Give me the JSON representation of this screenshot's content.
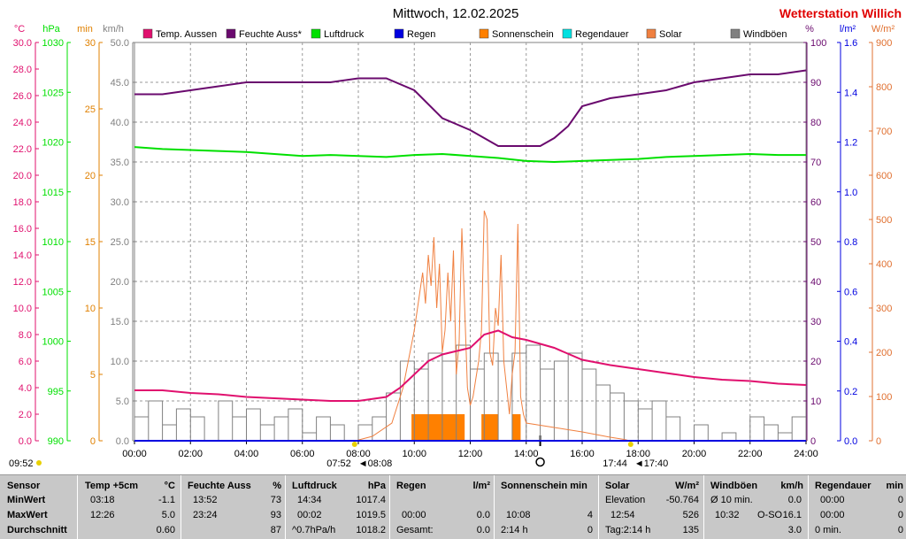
{
  "title": "Mittwoch, 12.02.2025",
  "station": "Wetterstation Willich",
  "colors": {
    "temp": "#e0106e",
    "humidity": "#6a0a6e",
    "pressure": "#00e000",
    "rain": "#0000e0",
    "sunshine": "#ff8000",
    "rainduration": "#00e0e0",
    "solar": "#f08040",
    "wind": "#808080",
    "grid": "#9a9a9a",
    "station": "#e00000"
  },
  "axes": {
    "temp": {
      "unit": "°C",
      "ticks": [
        "0.0",
        "2.0",
        "4.0",
        "6.0",
        "8.0",
        "10.0",
        "12.0",
        "14.0",
        "16.0",
        "18.0",
        "20.0",
        "22.0",
        "24.0",
        "26.0",
        "28.0",
        "30.0"
      ]
    },
    "pressure": {
      "unit": "hPa",
      "ticks": [
        "990",
        "995",
        "1000",
        "1005",
        "1010",
        "1015",
        "1020",
        "1025",
        "1030"
      ]
    },
    "sun_min": {
      "unit": "min",
      "ticks": [
        "0",
        "5",
        "10",
        "15",
        "20",
        "25",
        "30"
      ]
    },
    "wind": {
      "unit": "km/h",
      "ticks": [
        "0.0",
        "5.0",
        "10.0",
        "15.0",
        "20.0",
        "25.0",
        "30.0",
        "35.0",
        "40.0",
        "45.0",
        "50.0"
      ]
    },
    "humidity": {
      "unit": "%",
      "ticks": [
        "0",
        "10",
        "20",
        "30",
        "40",
        "50",
        "60",
        "70",
        "80",
        "90",
        "100"
      ]
    },
    "rain": {
      "unit": "l/m²",
      "ticks": [
        "0.0",
        "0.2",
        "0.4",
        "0.6",
        "0.8",
        "1.0",
        "1.2",
        "1.4",
        "1.6"
      ]
    },
    "solar": {
      "unit": "W/m²",
      "ticks": [
        "0",
        "100",
        "200",
        "300",
        "400",
        "500",
        "600",
        "700",
        "800",
        "900"
      ]
    }
  },
  "chart_data": {
    "type": "line",
    "title": "Mittwoch, 12.02.2025",
    "x_ticks": [
      "00:00",
      "02:00",
      "04:00",
      "06:00",
      "08:00",
      "10:00",
      "12:00",
      "14:00",
      "16:00",
      "18:00",
      "20:00",
      "22:00",
      "24:00"
    ],
    "legend": [
      "Temp. Aussen",
      "Feuchte Auss*",
      "Luftdruck",
      "Regen",
      "Sonnenschein",
      "Regendauer",
      "Solar",
      "Windböen"
    ],
    "series": [
      {
        "name": "Temp. Aussen",
        "unit": "°C",
        "x": [
          0,
          1,
          2,
          3,
          4,
          5,
          6,
          7,
          8,
          9,
          9.5,
          10,
          10.5,
          11,
          12,
          12.5,
          13,
          13.5,
          14,
          15,
          16,
          17,
          18,
          19,
          20,
          21,
          22,
          23,
          24
        ],
        "values": [
          3.8,
          3.8,
          3.6,
          3.5,
          3.3,
          3.2,
          3.1,
          3.0,
          3.0,
          3.3,
          4.0,
          5.0,
          6.0,
          6.5,
          7.0,
          8.0,
          8.3,
          7.8,
          7.6,
          7.0,
          6.1,
          5.7,
          5.4,
          5.1,
          4.8,
          4.6,
          4.5,
          4.3,
          4.2
        ]
      },
      {
        "name": "Feuchte Auss*",
        "unit": "%",
        "x": [
          0,
          1,
          2,
          3,
          4,
          5,
          6,
          7,
          8,
          9,
          10,
          11,
          12,
          12.5,
          13,
          13.5,
          14,
          14.5,
          15,
          15.5,
          16,
          17,
          18,
          19,
          20,
          21,
          22,
          23,
          24
        ],
        "values": [
          87,
          87,
          88,
          89,
          90,
          90,
          90,
          90,
          91,
          91,
          88,
          81,
          78,
          76,
          74,
          74,
          74,
          74,
          76,
          79,
          84,
          86,
          87,
          88,
          90,
          91,
          92,
          92,
          93
        ]
      },
      {
        "name": "Luftdruck",
        "unit": "hPa",
        "x": [
          0,
          1,
          2,
          3,
          4,
          5,
          6,
          7,
          8,
          9,
          10,
          11,
          12,
          13,
          14,
          15,
          16,
          17,
          18,
          19,
          20,
          21,
          22,
          23,
          24
        ],
        "values": [
          1019.5,
          1019.3,
          1019.2,
          1019.1,
          1019.0,
          1018.8,
          1018.6,
          1018.7,
          1018.6,
          1018.5,
          1018.7,
          1018.8,
          1018.6,
          1018.4,
          1018.1,
          1018.0,
          1018.1,
          1018.2,
          1018.3,
          1018.5,
          1018.6,
          1018.7,
          1018.8,
          1018.7,
          1018.7
        ]
      },
      {
        "name": "Regen",
        "unit": "l/m²",
        "x": [
          0,
          24
        ],
        "values": [
          0.0,
          0.0
        ]
      },
      {
        "name": "Sonnenschein",
        "unit": "min",
        "segments": [
          [
            9.9,
            11.8
          ],
          [
            12.4,
            13.0
          ],
          [
            13.5,
            13.8
          ]
        ]
      },
      {
        "name": "Regendauer",
        "unit": "min",
        "x": [
          0,
          24
        ],
        "values": [
          0,
          0
        ]
      },
      {
        "name": "Solar",
        "unit": "W/m²",
        "x": [
          7.9,
          8.5,
          9.2,
          9.6,
          10.0,
          10.3,
          10.4,
          10.5,
          10.6,
          10.7,
          10.8,
          10.9,
          11.0,
          11.1,
          11.2,
          11.3,
          11.4,
          11.5,
          11.6,
          11.7,
          11.8,
          11.9,
          12.0,
          12.1,
          12.2,
          12.3,
          12.4,
          12.5,
          12.6,
          12.7,
          12.8,
          12.9,
          13.0,
          13.1,
          13.2,
          13.3,
          13.4,
          13.5,
          13.6,
          13.7,
          13.8,
          13.9,
          14.0,
          14.5,
          15.0,
          15.5,
          16.0,
          16.5,
          17.0,
          17.5,
          17.7
        ],
        "values": [
          0,
          10,
          40,
          120,
          250,
          380,
          310,
          420,
          350,
          460,
          300,
          400,
          200,
          250,
          380,
          270,
          430,
          150,
          220,
          480,
          300,
          120,
          80,
          100,
          140,
          180,
          250,
          520,
          500,
          200,
          170,
          300,
          260,
          420,
          180,
          120,
          60,
          150,
          200,
          490,
          100,
          60,
          40,
          35,
          30,
          25,
          20,
          14,
          8,
          3,
          0
        ]
      },
      {
        "name": "Windböen",
        "unit": "km/h",
        "x": [
          0,
          0.5,
          1,
          1.5,
          2,
          2.5,
          3,
          3.5,
          4,
          4.5,
          5,
          5.5,
          6,
          6.5,
          7,
          7.5,
          8,
          8.5,
          9,
          9.5,
          10,
          10.5,
          11,
          11.5,
          12,
          12.5,
          13,
          13.5,
          14,
          14.5,
          15,
          15.5,
          16,
          16.5,
          17,
          17.5,
          18,
          18.5,
          19,
          19.5,
          20,
          20.5,
          21,
          21.5,
          22,
          22.5,
          23,
          23.5,
          24
        ],
        "values": [
          3,
          5,
          2,
          4,
          3,
          0,
          5,
          3,
          4,
          2,
          3,
          4,
          1,
          3,
          2,
          0,
          2,
          3,
          6,
          10,
          9,
          11,
          10,
          12,
          9,
          11,
          10,
          11,
          12,
          9,
          10,
          11,
          9,
          7,
          6,
          5,
          4,
          5,
          3,
          0,
          2,
          0,
          1,
          0,
          3,
          2,
          1,
          3,
          0
        ]
      }
    ],
    "markers": {
      "sunrise": "07:52",
      "civil_dawn": "08:08",
      "sunset": "17:44",
      "civil_dusk": "17:40",
      "start": "09:52"
    }
  },
  "stats": {
    "headers": {
      "sensor": "Sensor",
      "temp": "Temp +5cm",
      "temp_unit": "°C",
      "hum": "Feuchte Auss",
      "hum_unit": "%",
      "press": "Luftdruck",
      "press_unit": "hPa",
      "rain": "Regen",
      "rain_unit": "l/m²",
      "sun": "Sonnenschein min",
      "solar": "Solar",
      "solar_unit": "W/m²",
      "wind": "Windböen",
      "wind_unit": "km/h",
      "rdur": "Regendauer",
      "rdur_unit": "min"
    },
    "rows": [
      {
        "label": "MinWert",
        "temp_t": "03:18",
        "temp_v": "-1.1",
        "hum_t": "13:52",
        "hum_v": "73",
        "press_t": "14:34",
        "press_v": "1017.4",
        "rain_t": "",
        "rain_v": "",
        "sun_t": "",
        "sun_v": "",
        "solar_t": "Elevation",
        "solar_v": "-50.764",
        "wind_t": "Ø 10 min.",
        "wind_v": "0.0",
        "rdur_t": "00:00",
        "rdur_v": "0"
      },
      {
        "label": "MaxWert",
        "temp_t": "12:26",
        "temp_v": "5.0",
        "hum_t": "23:24",
        "hum_v": "93",
        "press_t": "00:02",
        "press_v": "1019.5",
        "rain_t": "00:00",
        "rain_v": "0.0",
        "sun_t": "10:08",
        "sun_v": "4",
        "solar_t": "12:54",
        "solar_v": "526",
        "wind_t": "10:32",
        "wind_d": "O-SO",
        "wind_v": "16.1",
        "rdur_t": "00:00",
        "rdur_v": "0"
      },
      {
        "label": "Durchschnitt",
        "temp_t": "",
        "temp_v": "0.60",
        "hum_t": "",
        "hum_v": "87",
        "press_t": "^0.7hPa/h",
        "press_v": "1018.2",
        "rain_t": "Gesamt:",
        "rain_v": "0.0",
        "sun_t": "2:14 h",
        "sun_v": "0",
        "solar_t": "Tag:2:14 h",
        "solar_v": "135",
        "wind_t": "",
        "wind_v": "3.0",
        "rdur_t": "0 min.",
        "rdur_v": "0"
      }
    ]
  }
}
